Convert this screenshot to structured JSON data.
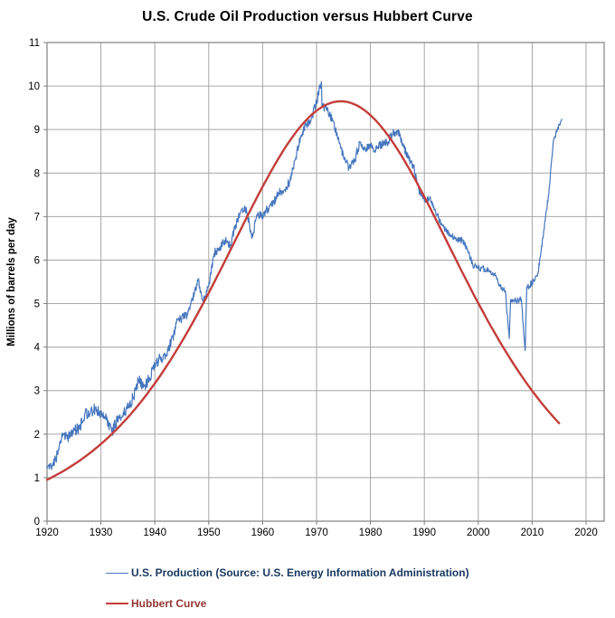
{
  "title": "U.S. Crude Oil Production versus Hubbert Curve",
  "colors": {
    "background": "#FFFFFF",
    "title_text": "#000000",
    "tick_text": "#000000",
    "gridline": "#A6A6A6",
    "axis_border": "#808080",
    "production_line": "#4576BE",
    "hubbert_line": "#C33D3A",
    "production_legend_text": "#17375E",
    "hubbert_legend_text": "#943634"
  },
  "chart_data": {
    "type": "line",
    "title": "U.S. Crude Oil Production versus Hubbert Curve",
    "xlabel": "",
    "ylabel": "Millions of barrels per day",
    "xlim": [
      1920,
      2023.5
    ],
    "ylim": [
      0,
      11
    ],
    "x_ticks": [
      1920,
      1930,
      1940,
      1950,
      1960,
      1970,
      1980,
      1990,
      2000,
      2010,
      2020
    ],
    "y_ticks": [
      0,
      1,
      2,
      3,
      4,
      5,
      6,
      7,
      8,
      9,
      10,
      11
    ],
    "grid": true,
    "legend_position": "bottom-left",
    "series": [
      {
        "name": "U.S. Production (Source: U.S. Energy Information Administration)",
        "color": "#4576BE",
        "stroke_width": 1.2,
        "style": "noisy-monthly",
        "noise_profile": [
          [
            1945,
            0.13
          ],
          [
            1990,
            0.1
          ],
          [
            2016,
            0.07
          ]
        ],
        "points": [
          [
            1920,
            1.21
          ],
          [
            1921,
            1.29
          ],
          [
            1922,
            1.53
          ],
          [
            1923,
            2.01
          ],
          [
            1924,
            1.95
          ],
          [
            1925,
            2.09
          ],
          [
            1926,
            2.12
          ],
          [
            1927,
            2.47
          ],
          [
            1928,
            2.46
          ],
          [
            1929,
            2.6
          ],
          [
            1930,
            2.46
          ],
          [
            1931,
            2.33
          ],
          [
            1932,
            2.05
          ],
          [
            1933,
            2.3
          ],
          [
            1934,
            2.42
          ],
          [
            1935,
            2.6
          ],
          [
            1936,
            2.85
          ],
          [
            1937,
            3.25
          ],
          [
            1938,
            3.1
          ],
          [
            1939,
            3.3
          ],
          [
            1940,
            3.55
          ],
          [
            1941,
            3.75
          ],
          [
            1942,
            3.8
          ],
          [
            1943,
            4.1
          ],
          [
            1944,
            4.55
          ],
          [
            1945,
            4.7
          ],
          [
            1946,
            4.75
          ],
          [
            1947,
            5.09
          ],
          [
            1948,
            5.52
          ],
          [
            1949,
            5.05
          ],
          [
            1950,
            5.41
          ],
          [
            1951,
            6.16
          ],
          [
            1952,
            6.26
          ],
          [
            1953,
            6.46
          ],
          [
            1954,
            6.34
          ],
          [
            1955,
            6.81
          ],
          [
            1956,
            7.15
          ],
          [
            1957,
            7.17
          ],
          [
            1958,
            6.5
          ],
          [
            1959,
            7.05
          ],
          [
            1960,
            7.04
          ],
          [
            1961,
            7.18
          ],
          [
            1962,
            7.33
          ],
          [
            1963,
            7.54
          ],
          [
            1964,
            7.61
          ],
          [
            1965,
            7.8
          ],
          [
            1966,
            8.3
          ],
          [
            1967,
            8.81
          ],
          [
            1968,
            9.1
          ],
          [
            1969,
            9.24
          ],
          [
            1970,
            9.64
          ],
          [
            1970.9,
            10.1
          ],
          [
            1971,
            9.55
          ],
          [
            1972,
            9.44
          ],
          [
            1973,
            9.21
          ],
          [
            1974,
            8.77
          ],
          [
            1975,
            8.37
          ],
          [
            1976,
            8.13
          ],
          [
            1977,
            8.25
          ],
          [
            1978,
            8.71
          ],
          [
            1979,
            8.55
          ],
          [
            1980,
            8.6
          ],
          [
            1981,
            8.57
          ],
          [
            1982,
            8.65
          ],
          [
            1983,
            8.69
          ],
          [
            1984,
            8.88
          ],
          [
            1985,
            8.97
          ],
          [
            1986,
            8.68
          ],
          [
            1987,
            8.35
          ],
          [
            1988,
            8.14
          ],
          [
            1989,
            7.61
          ],
          [
            1990,
            7.36
          ],
          [
            1991,
            7.42
          ],
          [
            1992,
            7.17
          ],
          [
            1993,
            6.85
          ],
          [
            1994,
            6.66
          ],
          [
            1995,
            6.56
          ],
          [
            1996,
            6.46
          ],
          [
            1997,
            6.45
          ],
          [
            1998,
            6.25
          ],
          [
            1999,
            5.88
          ],
          [
            2000,
            5.82
          ],
          [
            2001,
            5.8
          ],
          [
            2002,
            5.75
          ],
          [
            2003,
            5.68
          ],
          [
            2004,
            5.42
          ],
          [
            2005,
            5.3
          ],
          [
            2005.75,
            4.2
          ],
          [
            2006,
            5.09
          ],
          [
            2007,
            5.06
          ],
          [
            2008,
            5.1
          ],
          [
            2008.7,
            3.92
          ],
          [
            2009,
            5.35
          ],
          [
            2010,
            5.48
          ],
          [
            2011,
            5.65
          ],
          [
            2012,
            6.5
          ],
          [
            2013,
            7.47
          ],
          [
            2014,
            8.76
          ],
          [
            2015,
            9.1
          ],
          [
            2015.5,
            9.25
          ]
        ]
      },
      {
        "name": "Hubbert Curve",
        "color": "#C33D3A",
        "stroke_width": 2.4,
        "style": "smooth",
        "hubbert_params": {
          "peak_value": 9.65,
          "peak_year": 1974.5,
          "b": 0.0335,
          "start_year": 1920,
          "end_year": 2015
        },
        "points": [
          [
            1920,
            0.96
          ],
          [
            1925,
            1.3
          ],
          [
            1930,
            1.76
          ],
          [
            1935,
            2.39
          ],
          [
            1940,
            3.17
          ],
          [
            1945,
            4.13
          ],
          [
            1950,
            5.26
          ],
          [
            1955,
            6.49
          ],
          [
            1960,
            7.7
          ],
          [
            1965,
            8.73
          ],
          [
            1970,
            9.43
          ],
          [
            1974.5,
            9.65
          ],
          [
            1980,
            9.33
          ],
          [
            1985,
            8.55
          ],
          [
            1990,
            7.46
          ],
          [
            1995,
            6.23
          ],
          [
            2000,
            4.99
          ],
          [
            2005,
            3.9
          ],
          [
            2010,
            3.0
          ],
          [
            2015,
            2.24
          ]
        ]
      }
    ]
  },
  "legend": {
    "items": [
      {
        "label": "U.S. Production (Source: U.S. Energy Information Administration)"
      },
      {
        "label": "Hubbert Curve"
      }
    ]
  }
}
